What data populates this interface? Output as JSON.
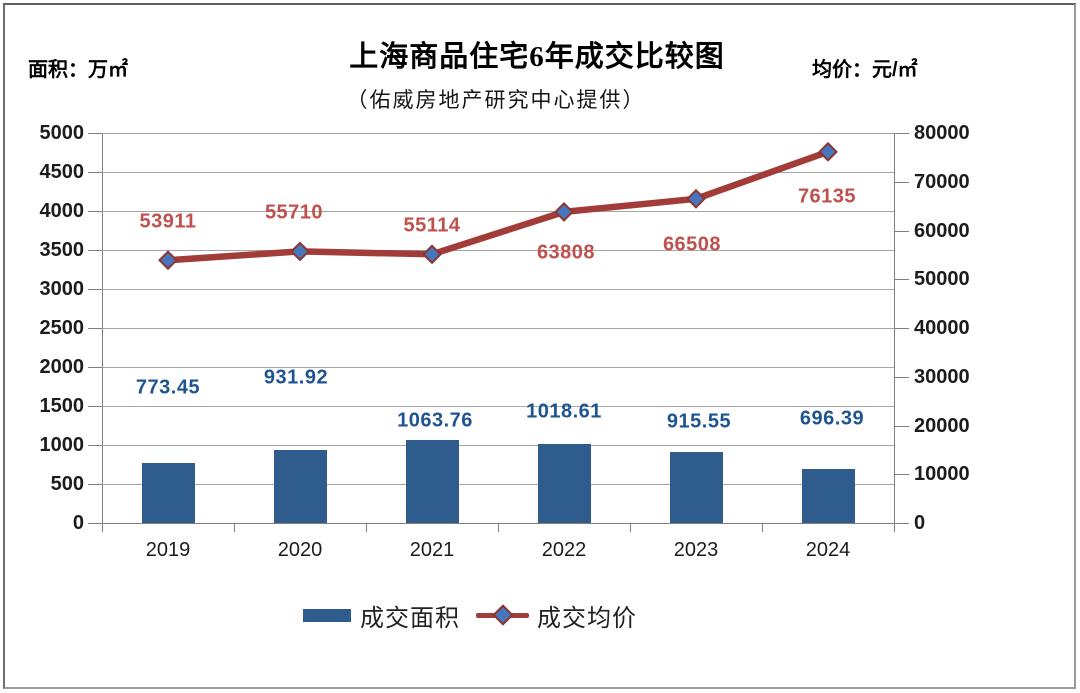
{
  "title": {
    "text": "上海商品住宅6年成交比较图",
    "subtitle": "（佑威房地产研究中心提供）"
  },
  "axis_units": {
    "left": "面积：万㎡",
    "right": "均价：元/㎡"
  },
  "chart_data": {
    "type": "combo-bar-line",
    "categories": [
      "2019",
      "2020",
      "2021",
      "2022",
      "2023",
      "2024"
    ],
    "series": [
      {
        "name": "成交面积",
        "type": "bar",
        "axis": "left",
        "values": [
          773.45,
          931.92,
          1063.76,
          1018.61,
          915.55,
          696.39
        ],
        "labels": [
          "773.45",
          "931.92",
          "1063.76",
          "1018.61",
          "915.55",
          "696.39"
        ]
      },
      {
        "name": "成交均价",
        "type": "line",
        "axis": "right",
        "values": [
          53911,
          55710,
          55114,
          63808,
          66508,
          76135
        ],
        "labels": [
          "53911",
          "55710",
          "55114",
          "63808",
          "66508",
          "76135"
        ]
      }
    ],
    "left_axis": {
      "min": 0,
      "max": 5000,
      "step": 500
    },
    "right_axis": {
      "min": 0,
      "max": 80000,
      "step": 10000
    },
    "grid": true,
    "legend_position": "bottom",
    "title": "上海商品住宅6年成交比较图",
    "subtitle": "（佑威房地产研究中心提供）",
    "left_axis_unit": "面积：万㎡",
    "right_axis_unit": "均价：元/㎡"
  },
  "colors": {
    "bar": "#2d5c8d",
    "line": "#a23c38",
    "marker_fill": "#4576be",
    "marker_stroke": "#8e3430",
    "bar_label": "#1f5492",
    "line_label": "#c0504d",
    "grid": "#a6a6a6",
    "axis": "#7f7f7f"
  }
}
